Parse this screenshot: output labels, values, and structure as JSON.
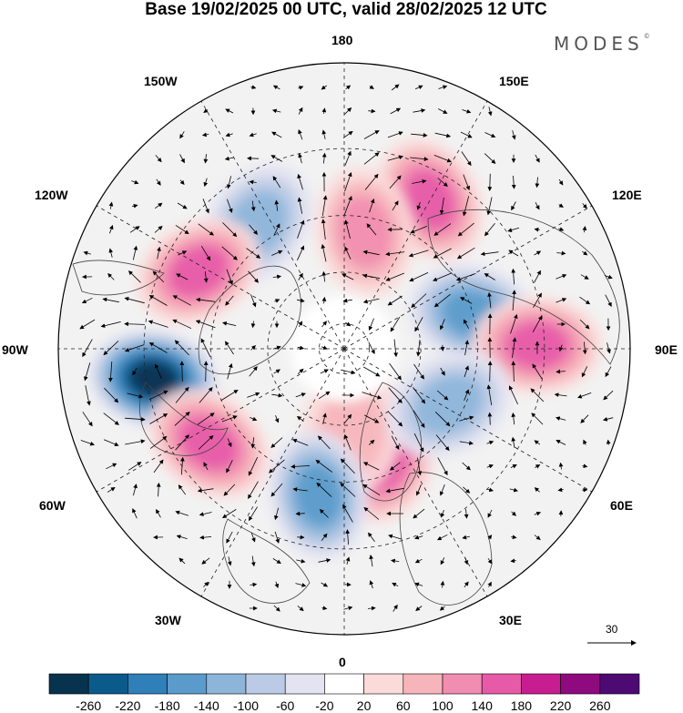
{
  "title": "Base 19/02/2025 00 UTC, valid 28/02/2025 12 UTC",
  "brand": {
    "name": "MODES",
    "mark": "©"
  },
  "longitude_labels": {
    "l180": "180",
    "l150W": "150W",
    "l150E": "150E",
    "l120W": "120W",
    "l120E": "120E",
    "l90W": "90W",
    "l90E": "90E",
    "l60W": "60W",
    "l60E": "60E",
    "l30W": "30W",
    "l30E": "30E",
    "l0": "0"
  },
  "reference_vector": {
    "label": "30"
  },
  "colorbar": {
    "colors": [
      "#08334f",
      "#0b5a8c",
      "#2f7fb8",
      "#5a9bcb",
      "#8db5da",
      "#bccbe5",
      "#e3e3f1",
      "#ffffff",
      "#fbdada",
      "#f6b5bb",
      "#f18db0",
      "#e65aa8",
      "#c81d91",
      "#8e0a7e",
      "#4c0a72"
    ],
    "labels": [
      "-260",
      "-220",
      "-180",
      "-140",
      "-100",
      "-60",
      "-20",
      "20",
      "60",
      "100",
      "140",
      "180",
      "220",
      "260"
    ]
  },
  "anomalies": [
    {
      "lat": 28,
      "lon": 150,
      "value": 150
    },
    {
      "lat": 45,
      "lon": 170,
      "value": 90
    },
    {
      "lat": 34,
      "lon": -145,
      "value": -120
    },
    {
      "lat": 30,
      "lon": -118,
      "value": 140
    },
    {
      "lat": 40,
      "lon": 105,
      "value": -140
    },
    {
      "lat": 22,
      "lon": 91,
      "value": 150
    },
    {
      "lat": 22,
      "lon": -81,
      "value": -250
    },
    {
      "lat": 30,
      "lon": -55,
      "value": 160
    },
    {
      "lat": 45,
      "lon": 20,
      "value": 150
    },
    {
      "lat": 58,
      "lon": 5,
      "value": 80
    },
    {
      "lat": 35,
      "lon": -10,
      "value": -130
    },
    {
      "lat": 45,
      "lon": 62,
      "value": -110
    }
  ]
}
